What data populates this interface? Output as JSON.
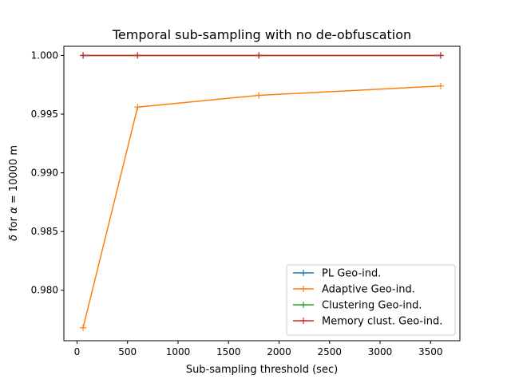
{
  "chart_data": {
    "type": "line",
    "title": "Temporal sub-sampling with no de-obfuscation",
    "xlabel": "Sub-sampling threshold (sec)",
    "ylabel_prefix": "δ for ",
    "ylabel_symbol": "α",
    "ylabel_suffix": " = 10000 m",
    "x": [
      60,
      600,
      1800,
      3600
    ],
    "xlim": [
      -130,
      3790
    ],
    "ylim": [
      0.9757,
      1.00078
    ],
    "xticks": [
      0,
      500,
      1000,
      1500,
      2000,
      2500,
      3000,
      3500
    ],
    "xtick_labels": [
      "0",
      "500",
      "1000",
      "1500",
      "2000",
      "2500",
      "3000",
      "3500"
    ],
    "yticks": [
      0.98,
      0.985,
      0.99,
      0.995,
      1.0
    ],
    "ytick_labels": [
      "0.980",
      "0.985",
      "0.990",
      "0.995",
      "1.000"
    ],
    "legend_position": "lower right",
    "series": [
      {
        "name": "PL Geo-ind.",
        "color": "#1f77b4",
        "values": [
          1.0,
          1.0,
          1.0,
          1.0
        ]
      },
      {
        "name": "Adaptive Geo-ind.",
        "color": "#ff7f0e",
        "values": [
          0.9768,
          0.9956,
          0.9966,
          0.9974
        ]
      },
      {
        "name": "Clustering Geo-ind.",
        "color": "#2ca02c",
        "values": [
          1.0,
          1.0,
          1.0,
          1.0
        ]
      },
      {
        "name": "Memory clust. Geo-ind.",
        "color": "#d62728",
        "values": [
          1.0,
          1.0,
          1.0,
          1.0
        ]
      }
    ]
  }
}
